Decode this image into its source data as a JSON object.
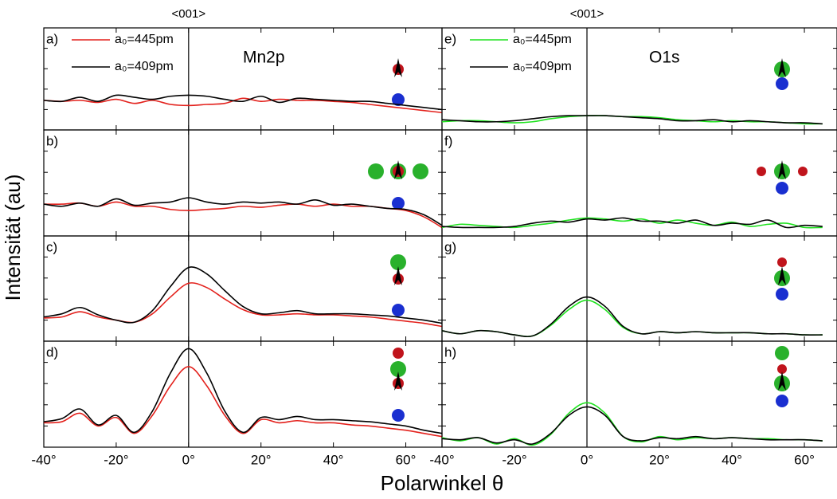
{
  "y_label": "Intensität (au)",
  "x_label": "Polarwinkel θ",
  "chart_data": [
    {
      "type": "line",
      "label": "a)",
      "title": "Mn2p",
      "annotation": "<001>",
      "xlim": [
        -40,
        70
      ],
      "ylim": [
        0,
        10
      ],
      "xticks": [
        -40,
        -20,
        0,
        20,
        40,
        60
      ],
      "yticks": [
        2,
        4,
        6,
        8
      ],
      "x": [
        -40,
        -35,
        -30,
        -25,
        -20,
        -15,
        -10,
        -5,
        0,
        5,
        10,
        15,
        20,
        25,
        30,
        35,
        40,
        45,
        50,
        55,
        60,
        65,
        70
      ],
      "series": [
        {
          "name": "a₀=445pm",
          "color": "#e3211c",
          "values": [
            2.9,
            2.8,
            2.9,
            2.7,
            3.0,
            2.6,
            2.9,
            2.5,
            2.4,
            2.5,
            2.6,
            3.1,
            2.8,
            3.0,
            2.9,
            2.9,
            2.8,
            2.7,
            2.5,
            2.3,
            2.1,
            1.9,
            1.7
          ]
        },
        {
          "name": "a₀=409pm",
          "color": "#000000",
          "values": [
            2.9,
            2.8,
            3.2,
            2.8,
            3.4,
            3.2,
            3.0,
            3.3,
            3.4,
            3.3,
            3.0,
            2.8,
            3.3,
            2.7,
            3.1,
            3.0,
            2.9,
            2.8,
            2.8,
            2.6,
            2.4,
            2.2,
            2.0
          ]
        }
      ]
    },
    {
      "type": "line",
      "label": "b)",
      "xlim": [
        -40,
        70
      ],
      "ylim": [
        0,
        10
      ],
      "xticks": [
        -40,
        -20,
        0,
        20,
        40,
        60
      ],
      "yticks": [
        2,
        4,
        6,
        8
      ],
      "x": [
        -40,
        -35,
        -30,
        -25,
        -20,
        -15,
        -10,
        -5,
        0,
        5,
        10,
        15,
        20,
        25,
        30,
        35,
        40,
        45,
        50,
        55,
        60,
        65,
        70
      ],
      "series": [
        {
          "color": "#e3211c",
          "values": [
            3.0,
            3.0,
            3.1,
            2.8,
            3.2,
            2.8,
            2.8,
            2.5,
            2.4,
            2.5,
            2.6,
            2.8,
            2.7,
            2.9,
            3.0,
            2.8,
            3.0,
            2.8,
            2.8,
            2.6,
            2.4,
            1.8,
            0.8
          ]
        },
        {
          "color": "#000000",
          "values": [
            3.0,
            2.8,
            3.1,
            2.8,
            3.5,
            2.9,
            3.1,
            3.2,
            3.6,
            3.2,
            3.0,
            3.2,
            3.1,
            3.2,
            3.0,
            3.4,
            2.9,
            3.0,
            2.8,
            2.6,
            2.5,
            2.0,
            1.0
          ]
        }
      ]
    },
    {
      "type": "line",
      "label": "c)",
      "xlim": [
        -40,
        70
      ],
      "ylim": [
        0,
        10
      ],
      "xticks": [
        -40,
        -20,
        0,
        20,
        40,
        60
      ],
      "yticks": [
        2,
        4,
        6,
        8
      ],
      "x": [
        -40,
        -35,
        -30,
        -25,
        -20,
        -15,
        -10,
        -5,
        0,
        5,
        10,
        15,
        20,
        25,
        30,
        35,
        40,
        45,
        50,
        55,
        60,
        65,
        70
      ],
      "series": [
        {
          "color": "#e3211c",
          "values": [
            2.2,
            2.3,
            2.8,
            2.3,
            2.0,
            1.8,
            2.6,
            4.2,
            5.5,
            5.1,
            4.0,
            3.0,
            2.5,
            2.5,
            2.6,
            2.5,
            2.5,
            2.4,
            2.3,
            2.1,
            1.9,
            1.7,
            1.4
          ]
        },
        {
          "color": "#000000",
          "values": [
            2.3,
            2.6,
            3.2,
            2.5,
            2.0,
            1.8,
            2.9,
            5.2,
            7.0,
            6.4,
            4.8,
            3.3,
            2.6,
            2.7,
            2.9,
            2.6,
            2.6,
            2.6,
            2.5,
            2.4,
            2.2,
            2.0,
            1.7
          ]
        }
      ]
    },
    {
      "type": "line",
      "label": "d)",
      "xlim": [
        -40,
        70
      ],
      "ylim": [
        0,
        10
      ],
      "yticks": [
        2,
        4,
        6,
        8
      ],
      "xticks": [
        {
          "value": -40,
          "label": "-40°"
        },
        {
          "value": -20,
          "label": "-20°"
        },
        {
          "value": 0,
          "label": "0°"
        },
        {
          "value": 20,
          "label": "20°"
        },
        {
          "value": 40,
          "label": "40°"
        },
        {
          "value": 60,
          "label": "60°"
        }
      ],
      "x": [
        -40,
        -35,
        -30,
        -25,
        -20,
        -15,
        -10,
        -5,
        0,
        5,
        10,
        15,
        20,
        25,
        30,
        35,
        40,
        45,
        50,
        55,
        60,
        65,
        70
      ],
      "series": [
        {
          "color": "#e3211c",
          "values": [
            2.3,
            2.4,
            3.2,
            2.0,
            2.8,
            1.3,
            3.0,
            5.8,
            7.6,
            5.8,
            3.0,
            1.3,
            2.6,
            2.3,
            2.5,
            2.3,
            2.3,
            2.1,
            2.0,
            1.8,
            1.6,
            1.3,
            1.0
          ]
        },
        {
          "color": "#000000",
          "values": [
            2.4,
            2.7,
            3.6,
            2.1,
            3.0,
            1.4,
            3.4,
            7.0,
            9.3,
            7.0,
            3.4,
            1.4,
            2.8,
            2.6,
            2.9,
            2.6,
            2.6,
            2.5,
            2.4,
            2.2,
            2.0,
            1.6,
            1.3
          ]
        }
      ]
    },
    {
      "type": "line",
      "label": "e)",
      "title": "O1s",
      "annotation": "<001>",
      "xlim": [
        -40,
        69
      ],
      "ylim": [
        0,
        10
      ],
      "xticks": [
        -40,
        -20,
        0,
        20,
        40,
        60
      ],
      "yticks": [
        2,
        4,
        6,
        8
      ],
      "x": [
        -40,
        -35,
        -30,
        -25,
        -20,
        -15,
        -10,
        -5,
        0,
        5,
        10,
        15,
        20,
        25,
        30,
        35,
        40,
        45,
        50,
        55,
        60,
        65
      ],
      "series": [
        {
          "name": "a₀=445pm",
          "color": "#1fe21f",
          "values": [
            0.8,
            0.9,
            0.9,
            0.8,
            0.7,
            0.8,
            1.1,
            1.3,
            1.4,
            1.4,
            1.3,
            1.3,
            1.2,
            1.0,
            0.9,
            0.8,
            0.9,
            0.8,
            0.8,
            0.7,
            0.6,
            0.6
          ]
        },
        {
          "name": "a₀=409pm",
          "color": "#000000",
          "values": [
            1.0,
            0.9,
            0.8,
            0.8,
            0.9,
            1.1,
            1.3,
            1.4,
            1.4,
            1.4,
            1.3,
            1.2,
            1.1,
            0.9,
            0.9,
            1.0,
            0.8,
            0.9,
            0.8,
            0.7,
            0.7,
            0.6
          ]
        }
      ]
    },
    {
      "type": "line",
      "label": "f)",
      "xlim": [
        -40,
        69
      ],
      "ylim": [
        0,
        10
      ],
      "xticks": [
        -40,
        -20,
        0,
        20,
        40,
        60
      ],
      "yticks": [
        2,
        4,
        6,
        8
      ],
      "x": [
        -40,
        -35,
        -30,
        -25,
        -20,
        -15,
        -10,
        -5,
        0,
        5,
        10,
        15,
        20,
        25,
        30,
        35,
        40,
        45,
        50,
        55,
        60,
        65
      ],
      "series": [
        {
          "color": "#1fe21f",
          "values": [
            0.8,
            1.1,
            1.0,
            0.9,
            0.8,
            1.0,
            1.2,
            1.5,
            1.7,
            1.6,
            1.4,
            1.6,
            1.2,
            1.5,
            1.2,
            1.0,
            1.3,
            0.9,
            1.1,
            1.2,
            0.8,
            0.8
          ]
        },
        {
          "color": "#000000",
          "values": [
            0.9,
            0.8,
            0.8,
            0.8,
            0.9,
            1.2,
            1.4,
            1.3,
            1.6,
            1.5,
            1.7,
            1.4,
            1.4,
            1.2,
            1.5,
            1.0,
            1.2,
            1.1,
            1.5,
            0.8,
            1.0,
            0.9
          ]
        }
      ]
    },
    {
      "type": "line",
      "label": "g)",
      "xlim": [
        -40,
        69
      ],
      "ylim": [
        0,
        10
      ],
      "xticks": [
        -40,
        -20,
        0,
        20,
        40,
        60
      ],
      "yticks": [
        2,
        4,
        6,
        8
      ],
      "x": [
        -40,
        -35,
        -30,
        -25,
        -20,
        -15,
        -10,
        -5,
        0,
        5,
        10,
        15,
        20,
        25,
        30,
        35,
        40,
        45,
        50,
        55,
        60,
        65
      ],
      "series": [
        {
          "color": "#1fe21f",
          "values": [
            1.0,
            0.7,
            1.0,
            0.9,
            0.6,
            0.5,
            1.5,
            3.0,
            3.9,
            3.0,
            1.3,
            0.7,
            0.9,
            0.8,
            0.9,
            0.8,
            0.8,
            0.8,
            0.7,
            0.7,
            0.6,
            0.6
          ]
        },
        {
          "color": "#000000",
          "values": [
            1.0,
            0.7,
            1.0,
            0.9,
            0.6,
            0.5,
            1.6,
            3.3,
            4.2,
            3.3,
            1.4,
            0.7,
            0.9,
            0.8,
            0.9,
            0.8,
            0.8,
            0.8,
            0.7,
            0.7,
            0.6,
            0.6
          ]
        }
      ]
    },
    {
      "type": "line",
      "label": "h)",
      "xlim": [
        -40,
        69
      ],
      "ylim": [
        0,
        10
      ],
      "yticks": [
        2,
        4,
        6,
        8
      ],
      "xticks": [
        {
          "value": -40,
          "label": "-40°"
        },
        {
          "value": -20,
          "label": "-20°"
        },
        {
          "value": 0,
          "label": "0°"
        },
        {
          "value": 20,
          "label": "20°"
        },
        {
          "value": 40,
          "label": "40°"
        },
        {
          "value": 60,
          "label": "60°"
        }
      ],
      "x": [
        -40,
        -35,
        -30,
        -25,
        -20,
        -15,
        -10,
        -5,
        0,
        5,
        10,
        15,
        20,
        25,
        30,
        35,
        40,
        45,
        50,
        55,
        60,
        65
      ],
      "series": [
        {
          "color": "#1fe21f",
          "values": [
            0.9,
            0.6,
            0.9,
            0.3,
            0.8,
            0.2,
            1.2,
            3.2,
            4.2,
            3.2,
            1.0,
            0.5,
            1.0,
            0.7,
            0.9,
            0.8,
            0.9,
            0.8,
            0.8,
            0.7,
            0.7,
            0.6
          ]
        },
        {
          "color": "#000000",
          "values": [
            0.8,
            0.7,
            0.9,
            0.4,
            0.7,
            0.3,
            1.3,
            3.0,
            3.8,
            3.0,
            1.0,
            0.6,
            0.9,
            0.8,
            1.0,
            0.8,
            0.9,
            0.8,
            0.7,
            0.7,
            0.7,
            0.6
          ]
        }
      ]
    }
  ]
}
